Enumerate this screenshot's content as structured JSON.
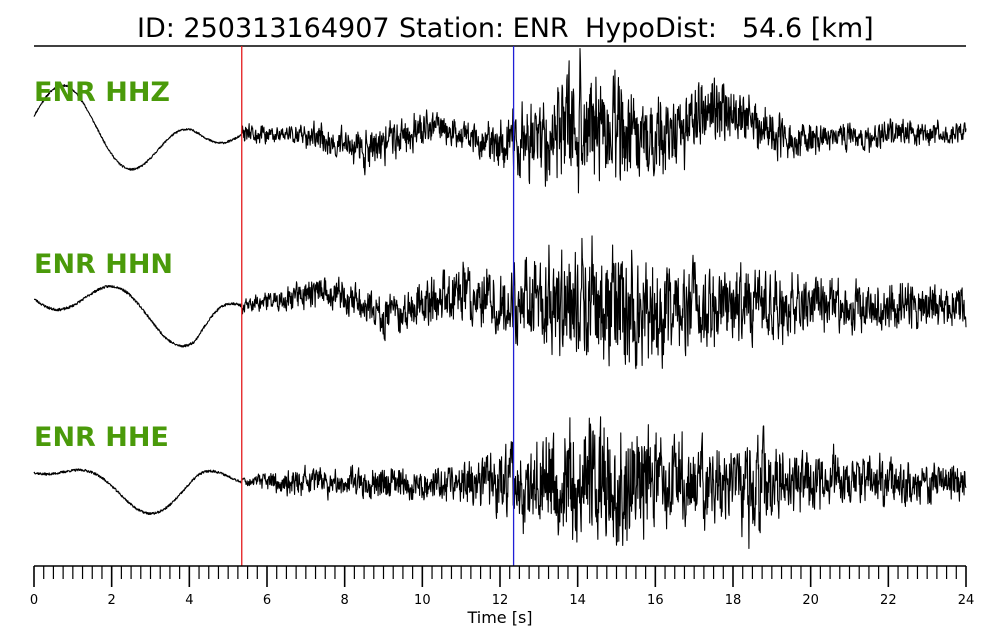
{
  "title": {
    "id_text": "ID: 250313164907",
    "station_text": "Station: ENR",
    "dist_label": "HypoDist:",
    "dist_value": "54.6 [km]"
  },
  "chart_data": {
    "type": "line",
    "xlabel": "Time [s]",
    "xlim": [
      0,
      24
    ],
    "major_ticks": [
      0,
      2,
      4,
      6,
      8,
      10,
      12,
      14,
      16,
      18,
      20,
      22,
      24
    ],
    "minor_tick_step": 0.25,
    "label_color": "#4a9a0a",
    "trace_color": "#000000",
    "markers": [
      {
        "name": "P",
        "time": 5.35,
        "color": "#e41a1c"
      },
      {
        "name": "S",
        "time": 12.35,
        "color": "#1f1fd6"
      }
    ],
    "series": [
      {
        "name": "ENR HHZ",
        "seed": 11,
        "features": {
          "pre": {
            "amps": [
              0.55,
              0.45
            ],
            "period": 3.1,
            "phase": 0.0
          },
          "coda": [
            [
              6.5,
              0.25
            ],
            [
              9.0,
              0.55
            ],
            [
              11.0,
              0.35
            ],
            [
              12.3,
              0.8
            ],
            [
              14.2,
              1.7
            ],
            [
              15.0,
              1.6
            ],
            [
              16.0,
              1.0
            ],
            [
              17.5,
              0.9
            ],
            [
              19.0,
              0.6
            ],
            [
              21.0,
              0.35
            ],
            [
              24.0,
              0.3
            ]
          ],
          "drift": [
            [
              5.4,
              0.0
            ],
            [
              7.0,
              0.0
            ],
            [
              8.5,
              -0.3
            ],
            [
              10.3,
              0.2
            ],
            [
              12.0,
              -0.25
            ],
            [
              14.0,
              0.1
            ],
            [
              16.0,
              -0.2
            ],
            [
              17.6,
              0.55
            ],
            [
              19.5,
              -0.1
            ],
            [
              22.0,
              0.0
            ],
            [
              24.0,
              0.05
            ]
          ]
        }
      },
      {
        "name": "ENR HHN",
        "seed": 23,
        "features": {
          "pre": {
            "amps": [
              -0.35,
              0.3
            ],
            "period": 3.3,
            "phase": 0.5
          },
          "coda": [
            [
              5.5,
              0.15
            ],
            [
              7.5,
              0.35
            ],
            [
              9.5,
              0.45
            ],
            [
              12.3,
              0.7
            ],
            [
              14.0,
              1.25
            ],
            [
              15.3,
              1.4
            ],
            [
              16.5,
              1.0
            ],
            [
              18.0,
              0.8
            ],
            [
              20.0,
              0.6
            ],
            [
              24.0,
              0.45
            ]
          ],
          "drift": [
            [
              5.4,
              0.0
            ],
            [
              7.5,
              0.25
            ],
            [
              9.0,
              -0.15
            ],
            [
              11.0,
              0.2
            ],
            [
              13.0,
              0.0
            ],
            [
              24.0,
              0.0
            ]
          ]
        }
      },
      {
        "name": "ENR HHE",
        "seed": 37,
        "features": {
          "pre": {
            "amps": [
              -0.2,
              0.35
            ],
            "period": 2.9,
            "phase": 1.2
          },
          "coda": [
            [
              5.5,
              0.1
            ],
            [
              6.5,
              0.3
            ],
            [
              8.0,
              0.35
            ],
            [
              10.5,
              0.4
            ],
            [
              12.3,
              0.85
            ],
            [
              14.0,
              1.45
            ],
            [
              15.3,
              1.55
            ],
            [
              16.5,
              1.05
            ],
            [
              18.0,
              0.8
            ],
            [
              18.7,
              1.4
            ],
            [
              19.3,
              0.75
            ],
            [
              21.0,
              0.55
            ],
            [
              24.0,
              0.45
            ]
          ],
          "drift": [
            [
              5.4,
              0.0
            ],
            [
              24.0,
              0.0
            ]
          ]
        }
      }
    ]
  }
}
